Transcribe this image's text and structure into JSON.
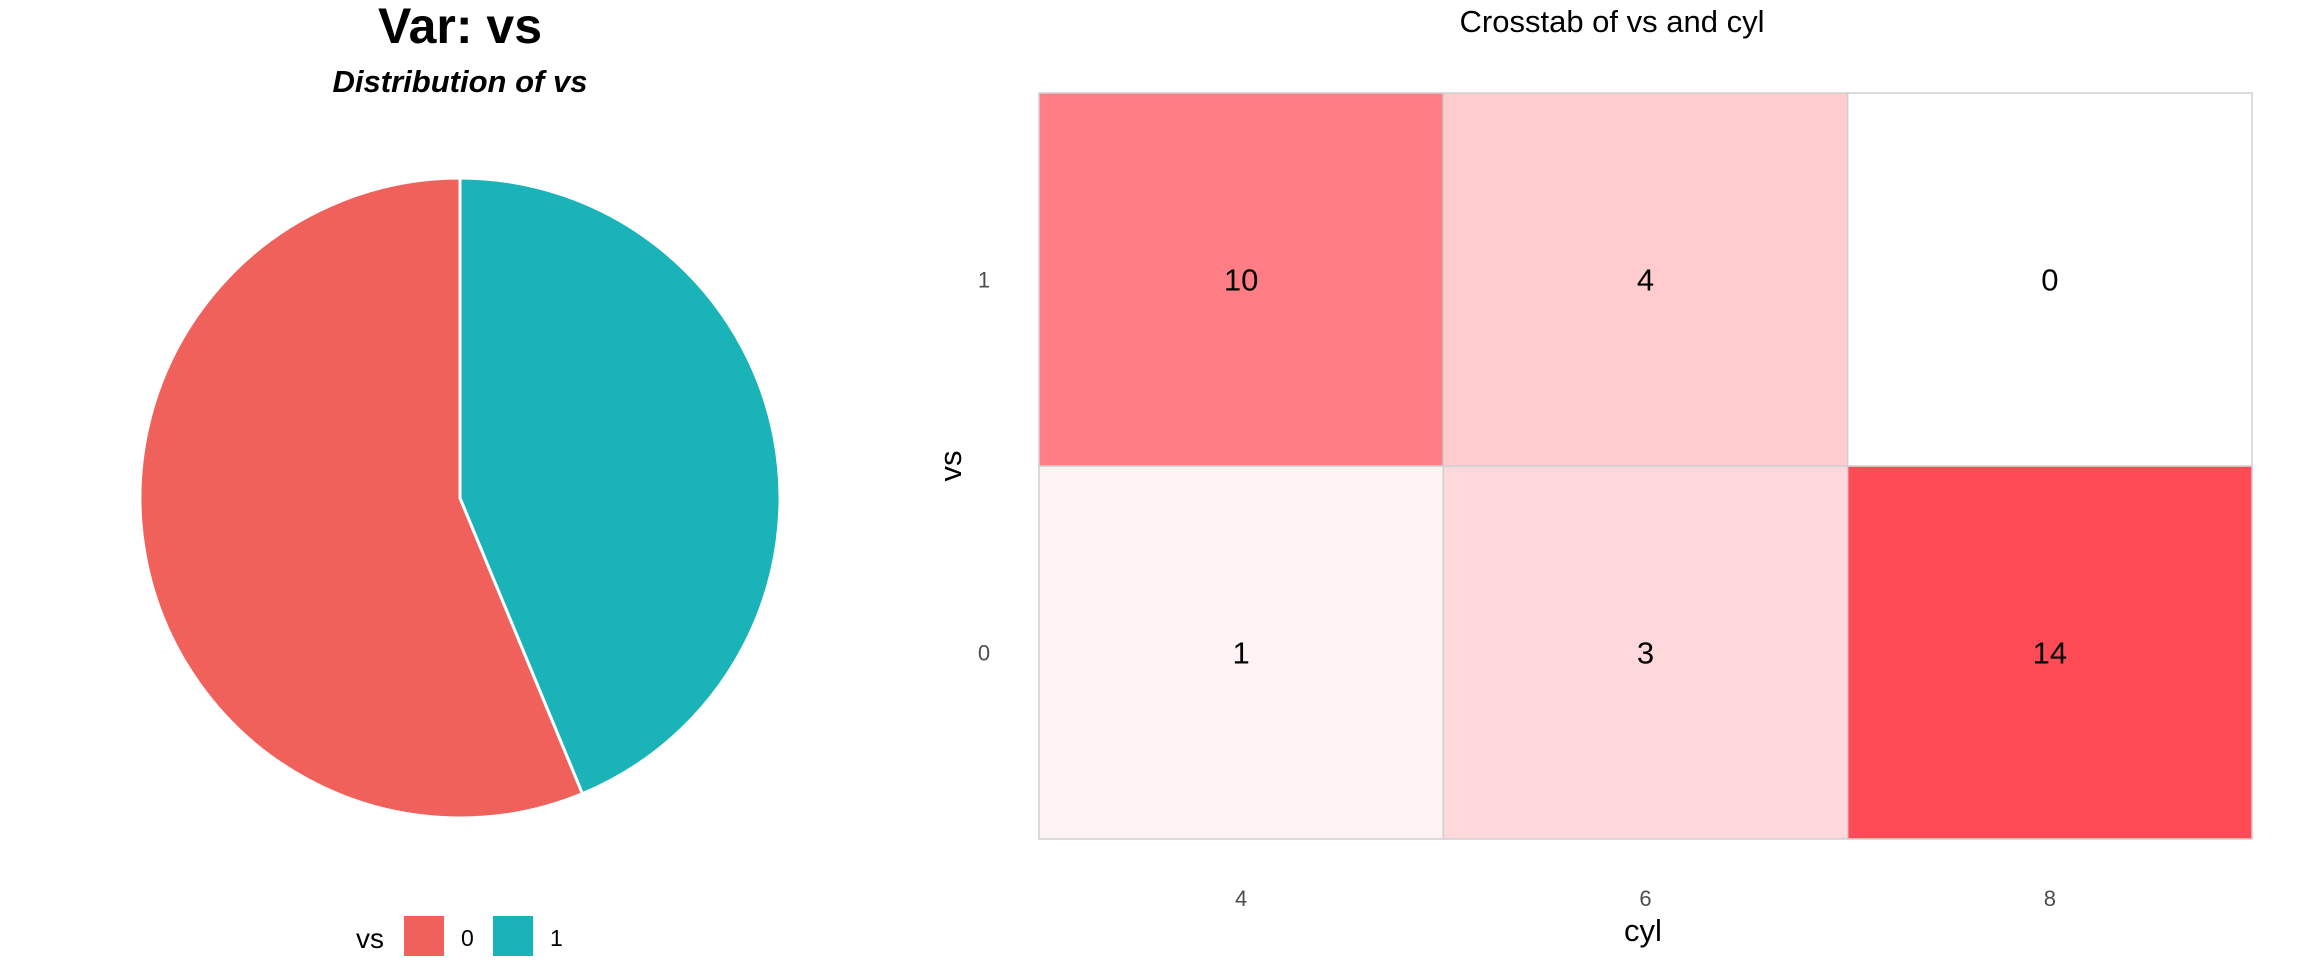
{
  "chart_data": [
    {
      "type": "pie",
      "title": "Var: vs",
      "subtitle": "Distribution of vs",
      "legend_title": "vs",
      "legend_position": "bottom",
      "categories": [
        "0",
        "1"
      ],
      "values": [
        18,
        14
      ],
      "colors": [
        "#F0615C",
        "#19B3B8"
      ]
    },
    {
      "type": "heatmap",
      "title": "Crosstab of vs and cyl",
      "xlabel": "cyl",
      "ylabel": "vs",
      "x_categories": [
        "4",
        "6",
        "8"
      ],
      "y_categories": [
        "0",
        "1"
      ],
      "values": [
        [
          1,
          3,
          14
        ],
        [
          10,
          4,
          0
        ]
      ],
      "low_color": "#FFFFFF",
      "high_color": "#FF4B55",
      "grid": false
    }
  ]
}
